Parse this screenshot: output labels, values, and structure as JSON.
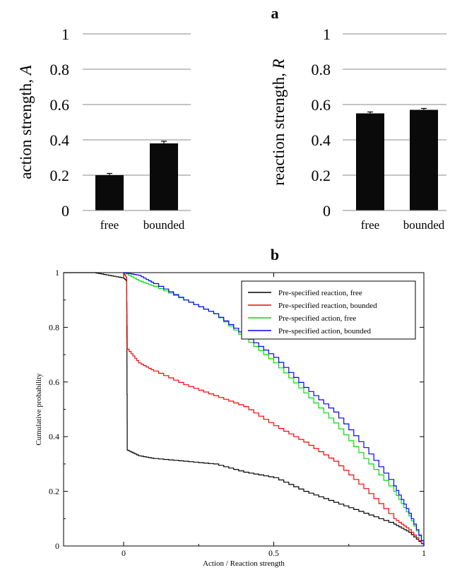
{
  "chart_data": [
    {
      "panel": "a",
      "type": "bar",
      "categories": [
        "free",
        "bounded"
      ],
      "values": [
        0.2,
        0.38
      ],
      "errors": [
        0.01,
        0.012
      ],
      "ylabel": "action strength, A",
      "ylim": [
        0,
        1
      ],
      "yticks": [
        "0",
        "0.2",
        "0.4",
        "0.6",
        "0.8",
        "1"
      ],
      "bar_color": "#0a0a0a",
      "grid": true
    },
    {
      "panel": "a",
      "type": "bar",
      "categories": [
        "free",
        "bounded"
      ],
      "values": [
        0.55,
        0.57
      ],
      "errors": [
        0.008,
        0.008
      ],
      "ylabel": "reaction strength, R",
      "ylim": [
        0,
        1
      ],
      "yticks": [
        "0",
        "0.2",
        "0.4",
        "0.6",
        "0.8",
        "1"
      ],
      "bar_color": "#0a0a0a",
      "grid": true
    },
    {
      "panel": "b",
      "type": "line",
      "xlabel": "Action / Reaction strength",
      "ylabel": "Cumulative probability",
      "xlim": [
        -0.2,
        1.0
      ],
      "ylim": [
        0,
        1
      ],
      "xticks": [
        "0",
        "0.5",
        "1"
      ],
      "yticks": [
        "0",
        "0.2",
        "0.4",
        "0.6",
        "0.8",
        "1"
      ],
      "legend_position": "top-right",
      "series": [
        {
          "name": "Pre-specified reaction, free",
          "color": "#000000",
          "points": [
            [
              -0.2,
              1.0
            ],
            [
              -0.1,
              1.0
            ],
            [
              -0.05,
              0.99
            ],
            [
              0.0,
              0.98
            ],
            [
              0.01,
              0.97
            ],
            [
              0.012,
              0.35
            ],
            [
              0.05,
              0.33
            ],
            [
              0.1,
              0.32
            ],
            [
              0.2,
              0.31
            ],
            [
              0.3,
              0.3
            ],
            [
              0.4,
              0.27
            ],
            [
              0.5,
              0.25
            ],
            [
              0.6,
              0.2
            ],
            [
              0.7,
              0.16
            ],
            [
              0.8,
              0.12
            ],
            [
              0.9,
              0.08
            ],
            [
              0.95,
              0.05
            ],
            [
              1.0,
              0.0
            ]
          ]
        },
        {
          "name": "Pre-specified reaction, bounded",
          "color": "#ff0000",
          "points": [
            [
              0.0,
              1.0
            ],
            [
              0.01,
              0.98
            ],
            [
              0.012,
              0.72
            ],
            [
              0.05,
              0.67
            ],
            [
              0.1,
              0.64
            ],
            [
              0.2,
              0.59
            ],
            [
              0.3,
              0.55
            ],
            [
              0.4,
              0.51
            ],
            [
              0.5,
              0.44
            ],
            [
              0.6,
              0.38
            ],
            [
              0.7,
              0.31
            ],
            [
              0.8,
              0.21
            ],
            [
              0.9,
              0.1
            ],
            [
              0.95,
              0.06
            ],
            [
              1.0,
              0.0
            ]
          ]
        },
        {
          "name": "Pre-specified action, free",
          "color": "#00dd00",
          "points": [
            [
              0.0,
              1.0
            ],
            [
              0.05,
              0.97
            ],
            [
              0.1,
              0.95
            ],
            [
              0.2,
              0.9
            ],
            [
              0.3,
              0.85
            ],
            [
              0.4,
              0.76
            ],
            [
              0.5,
              0.67
            ],
            [
              0.6,
              0.56
            ],
            [
              0.7,
              0.45
            ],
            [
              0.8,
              0.32
            ],
            [
              0.9,
              0.2
            ],
            [
              0.95,
              0.11
            ],
            [
              1.0,
              0.0
            ]
          ]
        },
        {
          "name": "Pre-specified action, bounded",
          "color": "#0000ff",
          "points": [
            [
              0.0,
              1.0
            ],
            [
              0.05,
              0.99
            ],
            [
              0.1,
              0.96
            ],
            [
              0.2,
              0.9
            ],
            [
              0.3,
              0.85
            ],
            [
              0.4,
              0.77
            ],
            [
              0.5,
              0.69
            ],
            [
              0.6,
              0.58
            ],
            [
              0.7,
              0.49
            ],
            [
              0.8,
              0.36
            ],
            [
              0.9,
              0.22
            ],
            [
              0.95,
              0.12
            ],
            [
              1.0,
              0.0
            ]
          ]
        }
      ]
    }
  ],
  "labels": {
    "panel_a": "a",
    "panel_b": "b"
  }
}
